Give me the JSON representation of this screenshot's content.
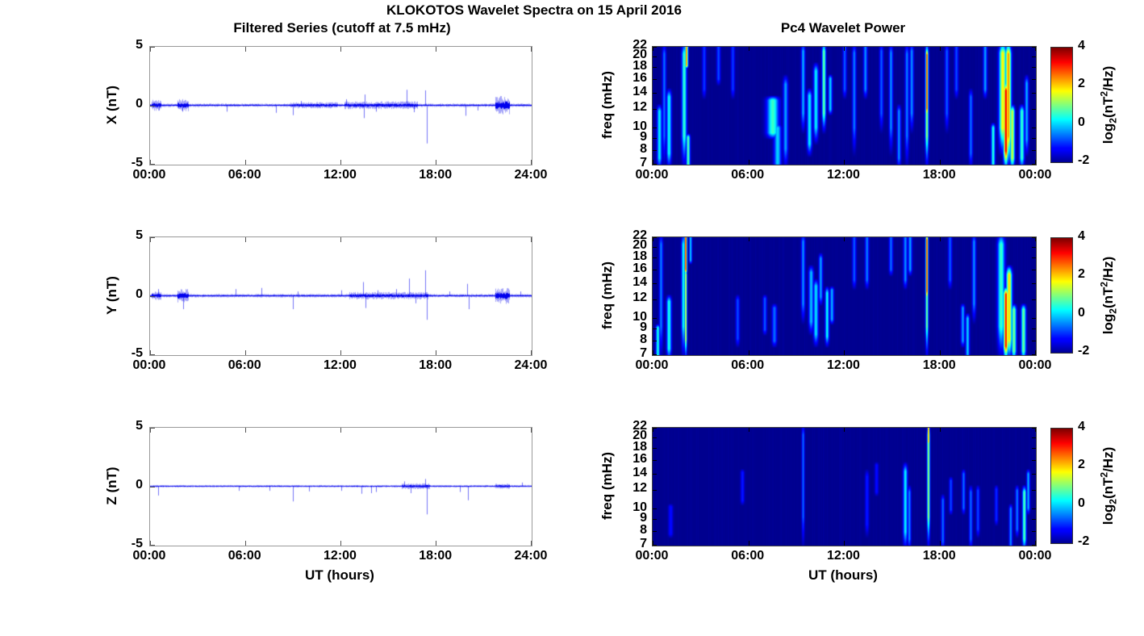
{
  "figure": {
    "title": "KLOKOTOS Wavelet Spectra on 15 April 2016",
    "left_title": "Filtered Series (cutoff at 7.5 mHz)",
    "right_title": "Pc4 Wavelet Power",
    "xlabel": "UT (hours)",
    "colorbar_label": {
      "prefix": "log",
      "sub": "2",
      "mid": "(nT",
      "sup": "2",
      "suffix": "/Hz)"
    },
    "trace_color": "#0000ee",
    "background": "#ffffff",
    "colormap_min_color": "#00008f",
    "colormap_max_color": "#7f0000"
  },
  "chart_data": [
    {
      "type": "line",
      "component": "X",
      "ylabel": "X (nT)",
      "xlim_hours": [
        0,
        24
      ],
      "ylim": [
        -5,
        5
      ],
      "x_ticks": [
        "00:00",
        "06:00",
        "12:00",
        "18:00",
        "24:00"
      ],
      "y_ticks": [
        "5",
        "0",
        "-5"
      ],
      "noise_base_nT": 0.07,
      "bursts_format": "[t_start_h, t_end_h, amplitude_nT]",
      "bursts": [
        [
          0.1,
          0.7,
          0.22
        ],
        [
          1.7,
          2.4,
          0.25
        ],
        [
          8.8,
          11.8,
          0.13
        ],
        [
          12.2,
          16.8,
          0.16
        ],
        [
          21.7,
          22.6,
          0.38
        ]
      ],
      "spikes_format": "[t_hours, peak_nT]",
      "spikes": [
        [
          0.55,
          -0.4
        ],
        [
          2.05,
          -0.5
        ],
        [
          4.8,
          -0.5
        ],
        [
          7.9,
          -0.6
        ],
        [
          9.0,
          -0.8
        ],
        [
          9.5,
          0.4
        ],
        [
          12.35,
          0.55
        ],
        [
          13.45,
          -1.05
        ],
        [
          13.5,
          0.95
        ],
        [
          14.2,
          -0.5
        ],
        [
          16.15,
          1.35
        ],
        [
          16.6,
          -0.55
        ],
        [
          17.3,
          1.3
        ],
        [
          17.38,
          -3.2
        ],
        [
          19.85,
          -0.85
        ],
        [
          20.6,
          -0.4
        ]
      ]
    },
    {
      "type": "line",
      "component": "Y",
      "ylabel": "Y (nT)",
      "xlim_hours": [
        0,
        24
      ],
      "ylim": [
        -5,
        5
      ],
      "x_ticks": [
        "00:00",
        "06:00",
        "12:00",
        "18:00",
        "24:00"
      ],
      "y_ticks": [
        "5",
        "0",
        "-5"
      ],
      "noise_base_nT": 0.07,
      "bursts": [
        [
          0.1,
          0.7,
          0.18
        ],
        [
          1.7,
          2.4,
          0.28
        ],
        [
          12.5,
          17.5,
          0.15
        ],
        [
          21.7,
          22.6,
          0.33
        ]
      ],
      "spikes": [
        [
          0.5,
          0.6
        ],
        [
          2.1,
          -1.1
        ],
        [
          5.4,
          0.6
        ],
        [
          7.0,
          0.7
        ],
        [
          9.0,
          -1.1
        ],
        [
          9.3,
          0.4
        ],
        [
          12.0,
          0.5
        ],
        [
          13.4,
          1.2
        ],
        [
          13.55,
          -1.0
        ],
        [
          14.3,
          0.5
        ],
        [
          15.5,
          0.6
        ],
        [
          16.3,
          1.5
        ],
        [
          16.7,
          -0.6
        ],
        [
          17.3,
          2.2
        ],
        [
          17.4,
          -2.0
        ],
        [
          18.8,
          0.4
        ],
        [
          19.95,
          1.05
        ],
        [
          20.05,
          -1.1
        ],
        [
          23.3,
          0.4
        ]
      ]
    },
    {
      "type": "line",
      "component": "Z",
      "ylabel": "Z (nT)",
      "xlim_hours": [
        0,
        24
      ],
      "ylim": [
        -5,
        5
      ],
      "x_ticks": [
        "00:00",
        "06:00",
        "12:00",
        "18:00",
        "24:00"
      ],
      "y_ticks": [
        "5",
        "0",
        "-5"
      ],
      "noise_base_nT": 0.05,
      "bursts": [
        [
          15.8,
          17.6,
          0.12
        ],
        [
          21.7,
          22.6,
          0.1
        ]
      ],
      "spikes": [
        [
          0.5,
          -0.75
        ],
        [
          5.6,
          -0.35
        ],
        [
          7.5,
          -0.35
        ],
        [
          9.0,
          -1.25
        ],
        [
          10.0,
          -0.4
        ],
        [
          12.0,
          -0.35
        ],
        [
          13.3,
          -0.6
        ],
        [
          13.9,
          -0.55
        ],
        [
          14.2,
          -0.45
        ],
        [
          16.0,
          0.45
        ],
        [
          16.4,
          -0.55
        ],
        [
          17.3,
          0.65
        ],
        [
          17.38,
          -2.35
        ],
        [
          19.5,
          -0.45
        ],
        [
          20.0,
          -1.15
        ],
        [
          23.4,
          0.35
        ]
      ]
    },
    {
      "type": "heatmap",
      "component": "X",
      "ylabel": "freq (mHz)",
      "yscale": "log",
      "flim_mHz": [
        7,
        22
      ],
      "x_ticks": [
        "00:00",
        "06:00",
        "12:00",
        "18:00",
        "00:00"
      ],
      "f_ticks": [
        "22",
        "20",
        "18",
        "16",
        "14",
        "12",
        "10",
        "9",
        "8",
        "7"
      ],
      "colormap": "jet",
      "clim": [
        -2,
        4
      ],
      "colorbar_ticks": [
        "4",
        "2",
        "0",
        "-2"
      ],
      "events_format": "[t_hours, f_lo_mHz, f_hi_mHz, peak_log2_power, sigma_hours]",
      "events": [
        [
          0.4,
          7,
          12,
          0.2,
          0.1
        ],
        [
          0.7,
          7,
          22,
          -0.6,
          0.08
        ],
        [
          1.0,
          7,
          14,
          0.3,
          0.1
        ],
        [
          1.95,
          7,
          22,
          0.6,
          0.1
        ],
        [
          2.1,
          19,
          22,
          2.6,
          0.06
        ],
        [
          2.2,
          7,
          9,
          0.8,
          0.08
        ],
        [
          3.2,
          14,
          22,
          -0.9,
          0.08
        ],
        [
          4.1,
          16,
          22,
          -0.8,
          0.08
        ],
        [
          5.0,
          14,
          22,
          -0.9,
          0.08
        ],
        [
          7.5,
          9.5,
          13,
          0.6,
          0.25
        ],
        [
          7.8,
          7,
          10,
          0.0,
          0.15
        ],
        [
          8.3,
          7,
          16,
          -0.3,
          0.1
        ],
        [
          9.4,
          10,
          22,
          -0.2,
          0.08
        ],
        [
          9.8,
          8,
          14,
          0.2,
          0.1
        ],
        [
          10.2,
          9,
          18,
          0.2,
          0.1
        ],
        [
          10.7,
          10,
          22,
          0.9,
          0.08
        ],
        [
          11.1,
          12,
          16,
          0.0,
          0.08
        ],
        [
          12.0,
          14,
          22,
          -0.7,
          0.08
        ],
        [
          12.6,
          8,
          22,
          -0.5,
          0.08
        ],
        [
          13.3,
          14,
          22,
          -0.4,
          0.08
        ],
        [
          14.3,
          10,
          22,
          -0.7,
          0.08
        ],
        [
          14.9,
          8,
          22,
          -0.4,
          0.08
        ],
        [
          15.4,
          7,
          12,
          -0.4,
          0.08
        ],
        [
          15.9,
          7,
          22,
          -0.5,
          0.08
        ],
        [
          16.2,
          10,
          22,
          -0.4,
          0.08
        ],
        [
          17.15,
          7,
          22,
          1.2,
          0.07
        ],
        [
          17.15,
          11,
          21,
          3.1,
          0.05
        ],
        [
          18.4,
          10,
          22,
          -0.7,
          0.08
        ],
        [
          19.0,
          14,
          22,
          -0.8,
          0.08
        ],
        [
          19.9,
          7,
          14,
          -0.6,
          0.08
        ],
        [
          20.8,
          14,
          22,
          -0.3,
          0.08
        ],
        [
          21.3,
          7,
          10,
          0.5,
          0.08
        ],
        [
          21.9,
          8,
          22,
          1.8,
          0.15
        ],
        [
          22.1,
          7,
          15,
          3.4,
          0.1
        ],
        [
          22.25,
          7,
          22,
          2.4,
          0.12
        ],
        [
          22.5,
          7,
          12,
          1.5,
          0.1
        ],
        [
          23.1,
          7,
          12,
          0.6,
          0.1
        ],
        [
          23.4,
          8,
          16,
          -0.2,
          0.08
        ]
      ]
    },
    {
      "type": "heatmap",
      "component": "Y",
      "ylabel": "freq (mHz)",
      "yscale": "log",
      "flim_mHz": [
        7,
        22
      ],
      "x_ticks": [
        "00:00",
        "06:00",
        "12:00",
        "18:00",
        "00:00"
      ],
      "f_ticks": [
        "22",
        "20",
        "18",
        "16",
        "14",
        "12",
        "10",
        "9",
        "8",
        "7"
      ],
      "colormap": "jet",
      "clim": [
        -2,
        4
      ],
      "colorbar_ticks": [
        "4",
        "2",
        "0",
        "-2"
      ],
      "events": [
        [
          0.3,
          7,
          9,
          0.4,
          0.08
        ],
        [
          0.5,
          7,
          22,
          -0.5,
          0.08
        ],
        [
          1.0,
          7,
          12,
          0.4,
          0.1
        ],
        [
          1.9,
          7,
          22,
          0.3,
          0.08
        ],
        [
          2.05,
          16,
          22,
          3.2,
          0.05
        ],
        [
          2.05,
          7,
          16,
          1.6,
          0.05
        ],
        [
          2.35,
          18,
          22,
          0.0,
          0.06
        ],
        [
          5.3,
          8,
          12,
          -0.8,
          0.08
        ],
        [
          7.0,
          9,
          12,
          -0.7,
          0.08
        ],
        [
          7.6,
          8,
          11,
          -0.6,
          0.1
        ],
        [
          9.4,
          10,
          22,
          -0.4,
          0.08
        ],
        [
          9.9,
          9,
          16,
          -0.1,
          0.1
        ],
        [
          10.2,
          8,
          14,
          0.1,
          0.1
        ],
        [
          10.5,
          12,
          18,
          -0.3,
          0.08
        ],
        [
          10.9,
          8,
          13,
          0.3,
          0.08
        ],
        [
          11.2,
          10,
          13,
          -0.2,
          0.08
        ],
        [
          12.6,
          14,
          22,
          -0.7,
          0.08
        ],
        [
          13.4,
          14,
          22,
          -0.5,
          0.08
        ],
        [
          14.9,
          16,
          22,
          -0.6,
          0.08
        ],
        [
          15.8,
          14,
          22,
          -0.4,
          0.08
        ],
        [
          16.1,
          16,
          22,
          -0.3,
          0.08
        ],
        [
          17.15,
          7,
          22,
          1.0,
          0.06
        ],
        [
          17.15,
          12,
          22,
          3.1,
          0.05
        ],
        [
          18.6,
          14,
          22,
          -0.7,
          0.08
        ],
        [
          19.4,
          8,
          11,
          -0.3,
          0.08
        ],
        [
          19.7,
          7,
          10,
          0.0,
          0.08
        ],
        [
          20.1,
          10,
          22,
          -0.4,
          0.08
        ],
        [
          21.8,
          7,
          22,
          0.6,
          0.15
        ],
        [
          22.1,
          7,
          13,
          3.2,
          0.1
        ],
        [
          22.3,
          7,
          16,
          2.0,
          0.12
        ],
        [
          22.6,
          7,
          11,
          1.0,
          0.1
        ],
        [
          23.2,
          7,
          11,
          0.9,
          0.1
        ]
      ]
    },
    {
      "type": "heatmap",
      "component": "Z",
      "ylabel": "freq (mHz)",
      "yscale": "log",
      "flim_mHz": [
        7,
        22
      ],
      "x_ticks": [
        "00:00",
        "06:00",
        "12:00",
        "18:00",
        "00:00"
      ],
      "f_ticks": [
        "22",
        "20",
        "18",
        "16",
        "14",
        "12",
        "10",
        "9",
        "8",
        "7"
      ],
      "colormap": "jet",
      "clim": [
        -2,
        4
      ],
      "colorbar_ticks": [
        "4",
        "2",
        "0",
        "-2"
      ],
      "events": [
        [
          1.1,
          8,
          10,
          -1.2,
          0.1
        ],
        [
          5.6,
          11,
          14,
          -1.1,
          0.08
        ],
        [
          9.4,
          7,
          22,
          -0.6,
          0.06
        ],
        [
          13.4,
          8,
          14,
          -1.1,
          0.08
        ],
        [
          14.0,
          12,
          15,
          -1.2,
          0.08
        ],
        [
          15.8,
          7,
          15,
          0.2,
          0.09
        ],
        [
          16.05,
          7,
          12,
          -0.4,
          0.07
        ],
        [
          17.25,
          7,
          22,
          1.2,
          0.06
        ],
        [
          17.25,
          20,
          22,
          2.6,
          0.04
        ],
        [
          18.15,
          7,
          11,
          -0.6,
          0.07
        ],
        [
          18.65,
          10,
          13,
          -0.8,
          0.07
        ],
        [
          19.45,
          10,
          14,
          -0.6,
          0.07
        ],
        [
          19.9,
          7,
          12,
          -0.6,
          0.07
        ],
        [
          20.35,
          8,
          12,
          -0.8,
          0.07
        ],
        [
          21.5,
          9,
          12,
          -1.0,
          0.07
        ],
        [
          22.4,
          7,
          10,
          -0.4,
          0.07
        ],
        [
          22.8,
          8,
          12,
          -0.5,
          0.07
        ],
        [
          23.25,
          7,
          12,
          0.8,
          0.08
        ],
        [
          23.5,
          10,
          14,
          -0.2,
          0.07
        ]
      ]
    }
  ]
}
